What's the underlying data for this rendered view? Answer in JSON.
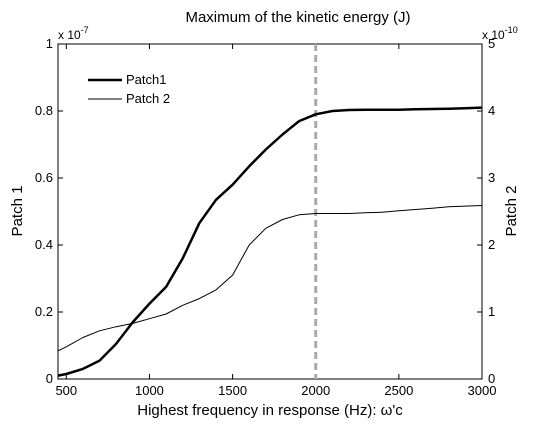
{
  "chart_data": {
    "type": "line",
    "title": "Maximum of the kinetic energy (J)",
    "xlabel": "Highest frequency in response (Hz): ω'c",
    "xlim": [
      450,
      3000
    ],
    "x_ticks": [
      500,
      1000,
      1500,
      2000,
      2500,
      3000
    ],
    "y_left": {
      "label": "Patch 1",
      "lim": [
        0,
        1
      ],
      "ticks": [
        "0",
        "0.2",
        "0.4",
        "0.6",
        "0.8",
        "1"
      ],
      "multiplier_mantissa": "x 10",
      "multiplier_exponent": "-7"
    },
    "y_right": {
      "label": "Patch 2",
      "lim": [
        0,
        5
      ],
      "ticks": [
        "0",
        "1",
        "2",
        "3",
        "4",
        "5"
      ],
      "multiplier_mantissa": "x 10",
      "multiplier_exponent": "-10"
    },
    "legend_position": "top-left",
    "grid": false,
    "vertical_line": {
      "x": 2000,
      "style": "dashed",
      "color": "#aaaaaa"
    },
    "series": [
      {
        "name": "Patch1",
        "axis": "left",
        "color": "#000000",
        "linestyle": "thick",
        "x": [
          450,
          500,
          600,
          700,
          800,
          900,
          1000,
          1100,
          1200,
          1300,
          1400,
          1500,
          1600,
          1700,
          1800,
          1900,
          2000,
          2100,
          2200,
          2300,
          2400,
          2500,
          2600,
          2700,
          2800,
          2900,
          3000
        ],
        "values": [
          0.01,
          0.015,
          0.03,
          0.055,
          0.105,
          0.17,
          0.225,
          0.275,
          0.36,
          0.465,
          0.535,
          0.58,
          0.635,
          0.685,
          0.73,
          0.77,
          0.79,
          0.8,
          0.803,
          0.804,
          0.804,
          0.804,
          0.805,
          0.806,
          0.807,
          0.808,
          0.81
        ]
      },
      {
        "name": "Patch 2",
        "axis": "right",
        "color": "#000000",
        "linestyle": "thin",
        "x": [
          450,
          500,
          600,
          700,
          800,
          900,
          1000,
          1100,
          1200,
          1300,
          1400,
          1500,
          1600,
          1700,
          1800,
          1900,
          2000,
          2100,
          2200,
          2300,
          2400,
          2500,
          2600,
          2700,
          2800,
          2900,
          3000
        ],
        "values": [
          0.42,
          0.48,
          0.62,
          0.72,
          0.78,
          0.83,
          0.9,
          0.97,
          1.1,
          1.2,
          1.33,
          1.55,
          2.0,
          2.25,
          2.38,
          2.45,
          2.47,
          2.47,
          2.47,
          2.48,
          2.49,
          2.51,
          2.53,
          2.55,
          2.57,
          2.58,
          2.59
        ]
      }
    ]
  }
}
